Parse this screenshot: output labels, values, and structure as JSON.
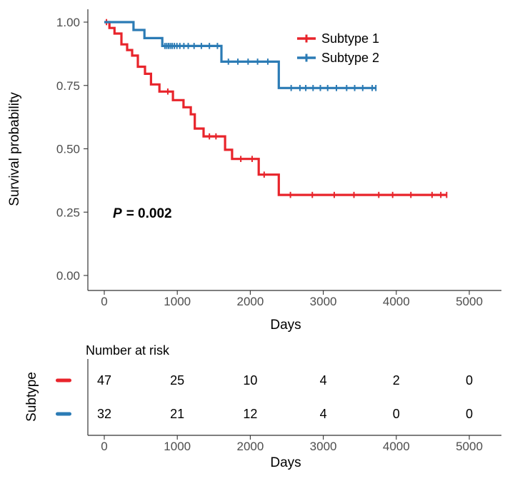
{
  "chart_data": {
    "type": "line",
    "subtype": "kaplan-meier-survival",
    "title": "",
    "xlabel": "Days",
    "ylabel": "Survival probability",
    "xlim": [
      0,
      5250
    ],
    "ylim": [
      0,
      1
    ],
    "grid": false,
    "legend_position": "inside-top-right",
    "p_symbol": "P",
    "p_equation": "= 0.002",
    "p_value": 0.002,
    "x_ticks": [
      0,
      1000,
      2000,
      3000,
      4000,
      5000
    ],
    "y_ticks": [
      {
        "value": 1.0,
        "label": "1.00"
      },
      {
        "value": 0.75,
        "label": "0.75"
      },
      {
        "value": 0.5,
        "label": "0.50"
      },
      {
        "value": 0.25,
        "label": "0.25"
      },
      {
        "value": 0.0,
        "label": "0.00"
      }
    ],
    "series": [
      {
        "name": "Subtype 1",
        "color": "#E8242B",
        "steps": [
          [
            0,
            1.0
          ],
          [
            70,
            0.977
          ],
          [
            140,
            0.955
          ],
          [
            235,
            0.912
          ],
          [
            313,
            0.89
          ],
          [
            382,
            0.868
          ],
          [
            460,
            0.824
          ],
          [
            558,
            0.796
          ],
          [
            640,
            0.754
          ],
          [
            755,
            0.726
          ],
          [
            940,
            0.692
          ],
          [
            1085,
            0.664
          ],
          [
            1185,
            0.636
          ],
          [
            1240,
            0.58
          ],
          [
            1360,
            0.549
          ],
          [
            1655,
            0.496
          ],
          [
            1750,
            0.46
          ],
          [
            2115,
            0.398
          ],
          [
            2390,
            0.318
          ]
        ],
        "end": 4690,
        "censors": [
          [
            30,
            1.0
          ],
          [
            870,
            0.726
          ],
          [
            1440,
            0.549
          ],
          [
            1530,
            0.549
          ],
          [
            1870,
            0.46
          ],
          [
            2025,
            0.46
          ],
          [
            2190,
            0.398
          ],
          [
            2550,
            0.318
          ],
          [
            2850,
            0.318
          ],
          [
            3150,
            0.318
          ],
          [
            3420,
            0.318
          ],
          [
            3760,
            0.318
          ],
          [
            3950,
            0.318
          ],
          [
            4200,
            0.318
          ],
          [
            4490,
            0.318
          ],
          [
            4610,
            0.318
          ],
          [
            4690,
            0.318
          ]
        ]
      },
      {
        "name": "Subtype 2",
        "color": "#2B7BB5",
        "steps": [
          [
            0,
            1.0
          ],
          [
            400,
            0.969
          ],
          [
            550,
            0.937
          ],
          [
            795,
            0.906
          ],
          [
            1605,
            0.844
          ],
          [
            2390,
            0.74
          ]
        ],
        "end": 3720,
        "censors": [
          [
            830,
            0.906
          ],
          [
            855,
            0.906
          ],
          [
            880,
            0.906
          ],
          [
            905,
            0.906
          ],
          [
            930,
            0.906
          ],
          [
            960,
            0.906
          ],
          [
            995,
            0.906
          ],
          [
            1035,
            0.906
          ],
          [
            1090,
            0.906
          ],
          [
            1150,
            0.906
          ],
          [
            1230,
            0.906
          ],
          [
            1330,
            0.906
          ],
          [
            1440,
            0.906
          ],
          [
            1550,
            0.906
          ],
          [
            1700,
            0.844
          ],
          [
            1830,
            0.844
          ],
          [
            1970,
            0.844
          ],
          [
            2100,
            0.844
          ],
          [
            2240,
            0.844
          ],
          [
            2560,
            0.74
          ],
          [
            2680,
            0.74
          ],
          [
            2760,
            0.74
          ],
          [
            2860,
            0.74
          ],
          [
            2960,
            0.74
          ],
          [
            3060,
            0.74
          ],
          [
            3180,
            0.74
          ],
          [
            3320,
            0.74
          ],
          [
            3430,
            0.74
          ],
          [
            3540,
            0.74
          ],
          [
            3670,
            0.74
          ],
          [
            3720,
            0.74
          ]
        ]
      }
    ],
    "risk_table": {
      "title": "Number at risk",
      "group_axis_label": "Subtype",
      "times": [
        0,
        1000,
        2000,
        3000,
        4000,
        5000
      ],
      "rows": [
        {
          "name": "Subtype 1",
          "color": "#E8242B",
          "counts": [
            47,
            25,
            10,
            4,
            2,
            0
          ]
        },
        {
          "name": "Subtype 2",
          "color": "#2B7BB5",
          "counts": [
            32,
            21,
            12,
            4,
            0,
            0
          ]
        }
      ]
    }
  }
}
